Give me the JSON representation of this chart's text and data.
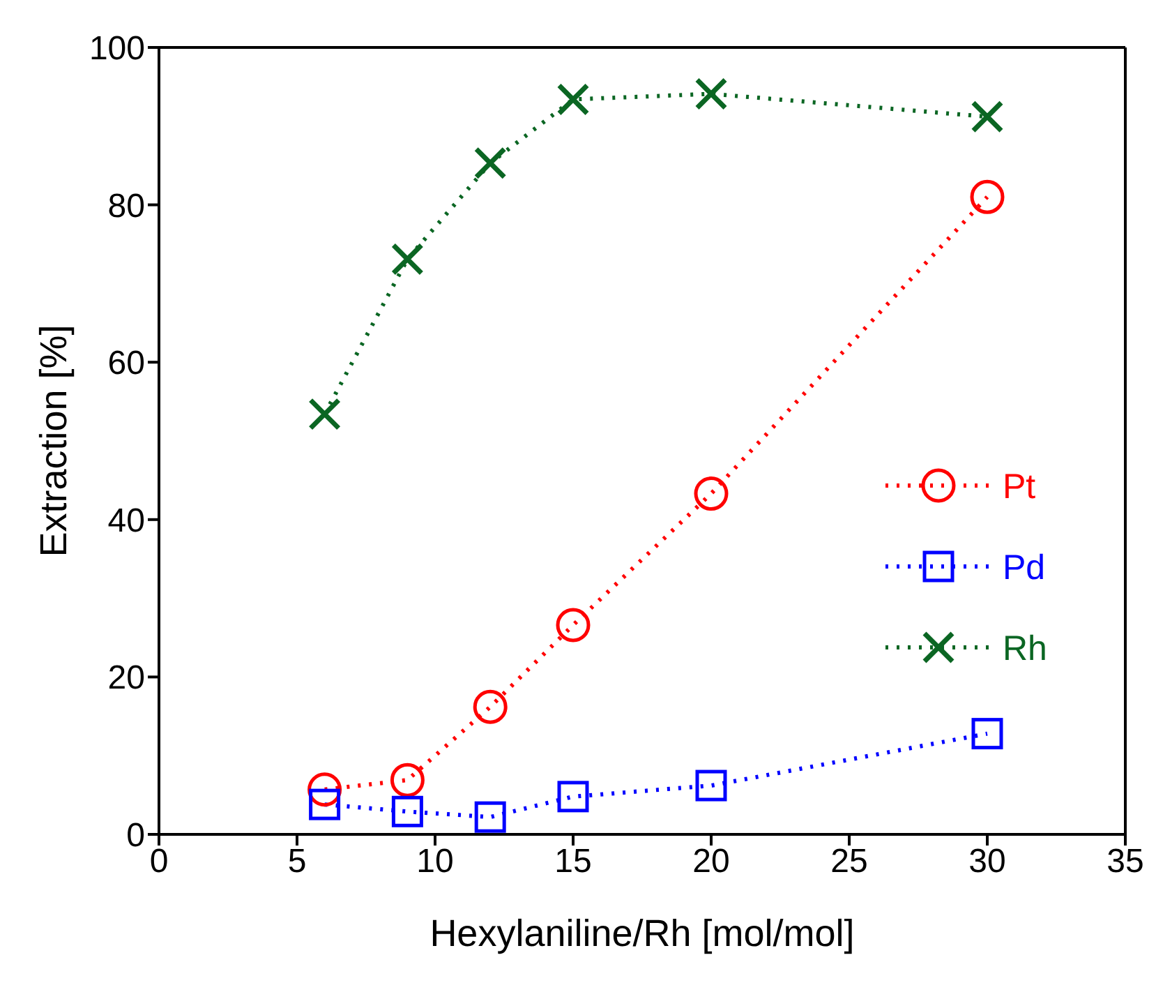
{
  "chart_data": {
    "type": "line",
    "xlabel": "Hexylaniline/Rh [mol/mol]",
    "ylabel": "Extraction [%]",
    "x": [
      6,
      9,
      12,
      15,
      20,
      30
    ],
    "xlim": [
      0,
      35
    ],
    "xticks": [
      0,
      5,
      10,
      15,
      20,
      25,
      30,
      35
    ],
    "ylim": [
      0,
      100
    ],
    "yticks": [
      0,
      20,
      40,
      60,
      80,
      100
    ],
    "grid": false,
    "legend": "right",
    "line_style": "dotted",
    "series": [
      {
        "name": "Pt",
        "color": "#ff0000",
        "marker": "circle",
        "values": [
          5.7,
          6.9,
          16.2,
          26.6,
          43.3,
          81
        ]
      },
      {
        "name": "Pd",
        "color": "#0000ff",
        "marker": "square",
        "values": [
          3.8,
          2.9,
          2.2,
          4.8,
          6.2,
          12.8
        ]
      },
      {
        "name": "Rh",
        "color": "#0b6623",
        "marker": "cross",
        "values": [
          53.4,
          73.1,
          85.3,
          93.4,
          94.1,
          91.2
        ]
      }
    ]
  }
}
